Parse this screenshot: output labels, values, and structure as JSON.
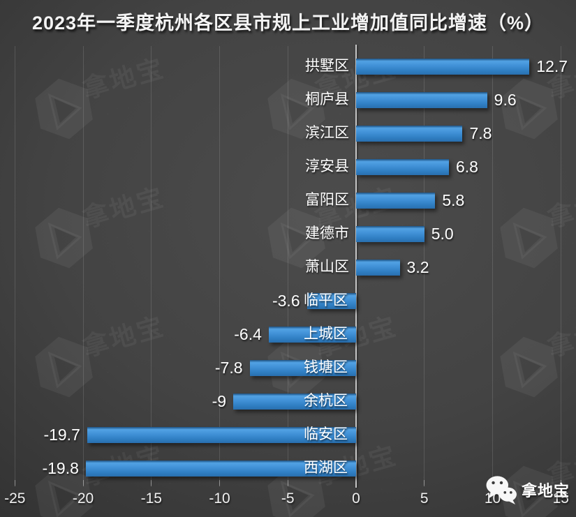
{
  "chart_data": {
    "type": "bar",
    "orientation": "horizontal",
    "title": "2023年一季度杭州各区县市规上工业增加值同比增速（%）",
    "categories": [
      "拱墅区",
      "桐庐县",
      "滨江区",
      "淳安县",
      "富阳区",
      "建德市",
      "萧山区",
      "临平区",
      "上城区",
      "钱塘区",
      "余杭区",
      "临安区",
      "西湖区"
    ],
    "values": [
      12.7,
      9.6,
      7.8,
      6.8,
      5.8,
      5.0,
      3.2,
      -3.6,
      -6.4,
      -7.8,
      -9,
      -19.7,
      -19.8
    ],
    "value_labels": [
      "12.7",
      "9.6",
      "7.8",
      "6.8",
      "5.8",
      "5.0",
      "3.2",
      "-3.6",
      "-6.4",
      "-7.8",
      "-9",
      "-19.7",
      "-19.8"
    ],
    "xlim": [
      -25,
      15
    ],
    "x_ticks": [
      -25,
      -20,
      -15,
      -10,
      -5,
      0,
      5,
      10,
      15
    ],
    "x_tick_labels": [
      "-25",
      "-20",
      "-15",
      "-10",
      "-5",
      "0",
      "5",
      "10",
      "15"
    ],
    "grid": true,
    "legend": false
  },
  "watermark": {
    "text": "拿地宝",
    "logo": "hexagon-triangle-logo"
  },
  "brand": {
    "icon": "wechat-icon",
    "text": "拿地宝"
  },
  "colors": {
    "background": "#3c3c3c",
    "bar_main": "#3787cd",
    "bar_light": "#52a2e4",
    "bar_dark": "#296fae",
    "zero_axis": "#c6c6c6",
    "text": "#ffffff"
  }
}
